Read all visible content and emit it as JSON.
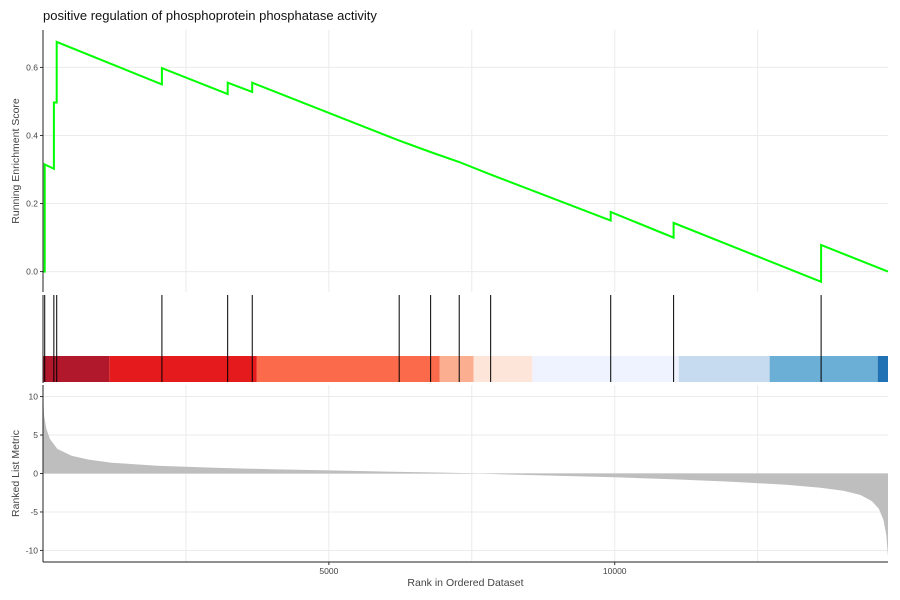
{
  "chart_data": {
    "type": "line",
    "title": "positive regulation of phosphoprotein phosphatase activity",
    "xlabel": "Rank in Ordered Dataset",
    "x_ticks": [
      5000,
      10000
    ],
    "xlim": [
      0,
      14780
    ],
    "grid": true,
    "running_score": {
      "ylabel": "Running Enrichment Score",
      "ylim": [
        -0.06,
        0.71
      ],
      "y_ticks": [
        0.0,
        0.2,
        0.4,
        0.6
      ],
      "tick_labels": [
        "0.0",
        "0.2",
        "0.4",
        "0.6"
      ],
      "color": "#00ff00",
      "points": [
        [
          0,
          0.0
        ],
        [
          30,
          0.0
        ],
        [
          30,
          0.315
        ],
        [
          190,
          0.302
        ],
        [
          190,
          0.497
        ],
        [
          240,
          0.497
        ],
        [
          240,
          0.675
        ],
        [
          2080,
          0.55
        ],
        [
          2080,
          0.598
        ],
        [
          3230,
          0.522
        ],
        [
          3230,
          0.555
        ],
        [
          3660,
          0.528
        ],
        [
          3660,
          0.555
        ],
        [
          6230,
          0.385
        ],
        [
          6800,
          0.35
        ],
        [
          7280,
          0.322
        ],
        [
          7830,
          0.285
        ],
        [
          9930,
          0.15
        ],
        [
          9930,
          0.175
        ],
        [
          11030,
          0.1
        ],
        [
          11030,
          0.143
        ],
        [
          13610,
          -0.03
        ],
        [
          13610,
          0.078
        ],
        [
          14780,
          0.0
        ]
      ]
    },
    "hits": {
      "positions": [
        30,
        190,
        240,
        2080,
        3230,
        3660,
        6230,
        6780,
        7280,
        7830,
        9930,
        11030,
        13610
      ],
      "color": "#000000"
    },
    "heat_band": {
      "segments": [
        {
          "from": 0,
          "to": 1160,
          "color": "#b2182b"
        },
        {
          "from": 1160,
          "to": 3740,
          "color": "#e41a1c"
        },
        {
          "from": 3740,
          "to": 6940,
          "color": "#fb6a4a"
        },
        {
          "from": 6940,
          "to": 7530,
          "color": "#fcae91"
        },
        {
          "from": 7530,
          "to": 8560,
          "color": "#fee5d9"
        },
        {
          "from": 8560,
          "to": 11120,
          "color": "#eff3ff"
        },
        {
          "from": 11120,
          "to": 12710,
          "color": "#c6dbef"
        },
        {
          "from": 12710,
          "to": 14600,
          "color": "#6baed6"
        },
        {
          "from": 14600,
          "to": 14780,
          "color": "#2171b5"
        }
      ]
    },
    "ranked_metric": {
      "ylabel": "Ranked List Metric",
      "ylim": [
        -11.5,
        11.5
      ],
      "y_ticks": [
        -10,
        -5,
        0,
        5,
        10
      ],
      "tick_labels": [
        "-10",
        "-5",
        "0",
        "5",
        "10"
      ],
      "fill": "#bebebe",
      "points": [
        [
          0,
          10.5
        ],
        [
          20,
          7.5
        ],
        [
          60,
          5.8
        ],
        [
          120,
          4.5
        ],
        [
          250,
          3.2
        ],
        [
          500,
          2.3
        ],
        [
          800,
          1.8
        ],
        [
          1200,
          1.4
        ],
        [
          2000,
          1.0
        ],
        [
          3000,
          0.75
        ],
        [
          4000,
          0.55
        ],
        [
          5000,
          0.4
        ],
        [
          6000,
          0.25
        ],
        [
          7000,
          0.12
        ],
        [
          7500,
          0.02
        ],
        [
          8000,
          -0.1
        ],
        [
          9000,
          -0.3
        ],
        [
          10000,
          -0.5
        ],
        [
          11000,
          -0.75
        ],
        [
          12000,
          -1.05
        ],
        [
          13000,
          -1.45
        ],
        [
          13600,
          -1.85
        ],
        [
          14000,
          -2.25
        ],
        [
          14300,
          -2.8
        ],
        [
          14500,
          -3.6
        ],
        [
          14620,
          -4.6
        ],
        [
          14700,
          -6.0
        ],
        [
          14750,
          -8.0
        ],
        [
          14780,
          -10.8
        ]
      ]
    }
  }
}
